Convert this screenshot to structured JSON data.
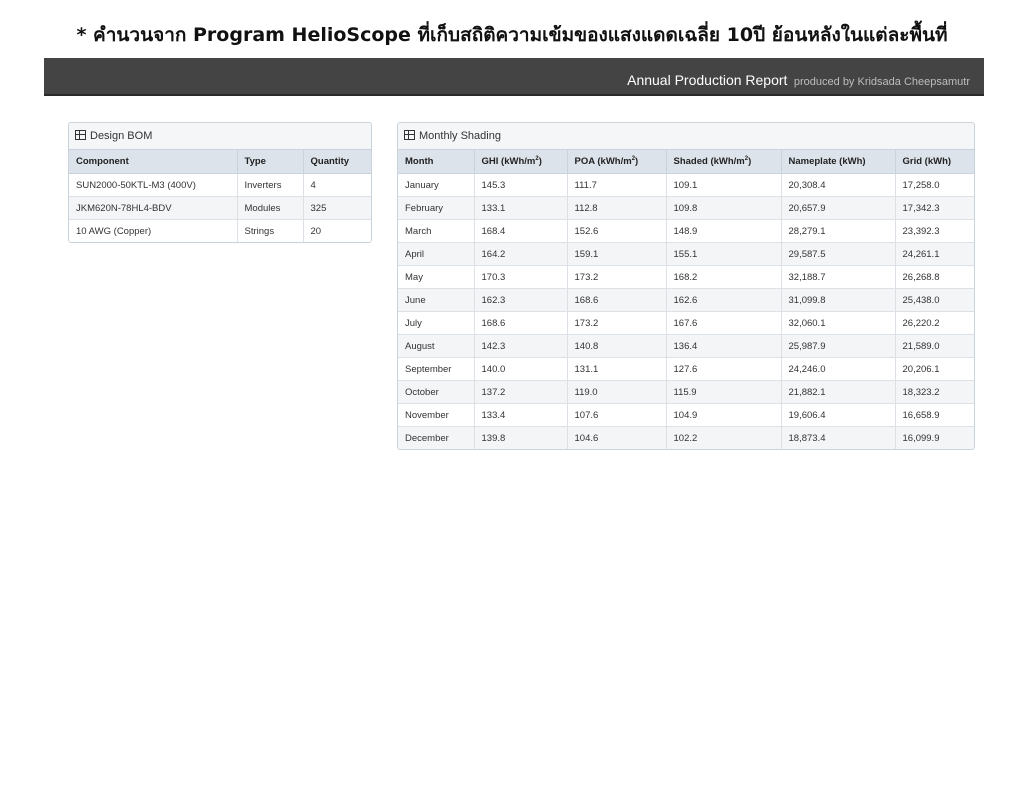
{
  "note": "* คำนวนจาก Program HelioScope ที่เก็บสถิติความเข้มของแสงแดดเฉลี่ย 10ปี ย้อนหลังในแต่ละพื้นที่",
  "banner": {
    "title": "Annual Production Report",
    "byline": "produced by Kridsada Cheepsamutr"
  },
  "bom": {
    "title": "Design BOM",
    "icon": "table-icon",
    "headers": [
      "Component",
      "Type",
      "Quantity"
    ],
    "rows": [
      [
        "SUN2000-50KTL-M3 (400V)",
        "Inverters",
        "4"
      ],
      [
        "JKM620N-78HL4-BDV",
        "Modules",
        "325"
      ],
      [
        "10 AWG (Copper)",
        "Strings",
        "20"
      ]
    ]
  },
  "shading": {
    "title": "Monthly Shading",
    "icon": "table-icon",
    "headers": [
      {
        "label": "Month",
        "sup": ""
      },
      {
        "label": "GHI (kWh/m",
        "sup": "2",
        "tail": ")"
      },
      {
        "label": "POA (kWh/m",
        "sup": "2",
        "tail": ")"
      },
      {
        "label": "Shaded (kWh/m",
        "sup": "2",
        "tail": ")"
      },
      {
        "label": "Nameplate (kWh)",
        "sup": ""
      },
      {
        "label": "Grid (kWh)",
        "sup": ""
      }
    ],
    "rows": [
      [
        "January",
        "145.3",
        "111.7",
        "109.1",
        "20,308.4",
        "17,258.0"
      ],
      [
        "February",
        "133.1",
        "112.8",
        "109.8",
        "20,657.9",
        "17,342.3"
      ],
      [
        "March",
        "168.4",
        "152.6",
        "148.9",
        "28,279.1",
        "23,392.3"
      ],
      [
        "April",
        "164.2",
        "159.1",
        "155.1",
        "29,587.5",
        "24,261.1"
      ],
      [
        "May",
        "170.3",
        "173.2",
        "168.2",
        "32,188.7",
        "26,268.8"
      ],
      [
        "June",
        "162.3",
        "168.6",
        "162.6",
        "31,099.8",
        "25,438.0"
      ],
      [
        "July",
        "168.6",
        "173.2",
        "167.6",
        "32,060.1",
        "26,220.2"
      ],
      [
        "August",
        "142.3",
        "140.8",
        "136.4",
        "25,987.9",
        "21,589.0"
      ],
      [
        "September",
        "140.0",
        "131.1",
        "127.6",
        "24,246.0",
        "20,206.1"
      ],
      [
        "October",
        "137.2",
        "119.0",
        "115.9",
        "21,882.1",
        "18,323.2"
      ],
      [
        "November",
        "133.4",
        "107.6",
        "104.9",
        "19,606.4",
        "16,658.9"
      ],
      [
        "December",
        "139.8",
        "104.6",
        "102.2",
        "18,873.4",
        "16,099.9"
      ]
    ]
  }
}
